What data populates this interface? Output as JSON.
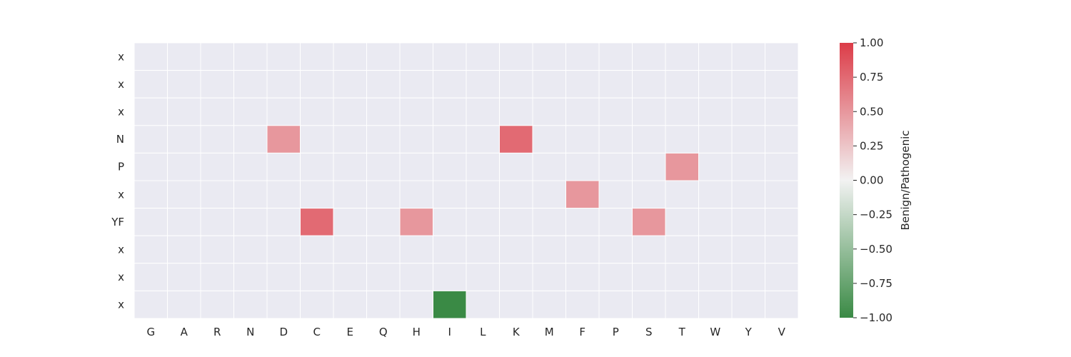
{
  "chart_data": {
    "type": "heatmap",
    "x_categories": [
      "G",
      "A",
      "R",
      "N",
      "D",
      "C",
      "E",
      "Q",
      "H",
      "I",
      "L",
      "K",
      "M",
      "F",
      "P",
      "S",
      "T",
      "W",
      "Y",
      "V"
    ],
    "y_categories": [
      "x",
      "x",
      "x",
      "N",
      "P",
      "x",
      "YF",
      "x",
      "x",
      "x"
    ],
    "cells": [
      {
        "row": 3,
        "col": 4,
        "value": 0.5
      },
      {
        "row": 3,
        "col": 11,
        "value": 0.75
      },
      {
        "row": 4,
        "col": 16,
        "value": 0.5
      },
      {
        "row": 5,
        "col": 13,
        "value": 0.5
      },
      {
        "row": 6,
        "col": 5,
        "value": 0.75
      },
      {
        "row": 6,
        "col": 8,
        "value": 0.5
      },
      {
        "row": 6,
        "col": 15,
        "value": 0.5
      },
      {
        "row": 9,
        "col": 9,
        "value": -1.0
      }
    ],
    "empty_cell_color": "#eaeaf2",
    "grid_color": "#ffffff",
    "colorbar": {
      "label": "Benign/Pathogenic",
      "range": [
        -1.0,
        1.0
      ],
      "ticks": [
        "1.00",
        "0.75",
        "0.50",
        "0.25",
        "0.00",
        "−0.25",
        "−0.50",
        "−0.75",
        "−1.00"
      ],
      "tick_values": [
        1.0,
        0.75,
        0.5,
        0.25,
        0.0,
        -0.25,
        -0.5,
        -0.75,
        -1.0
      ],
      "color_low": "#3a8a45",
      "color_mid": "#f2f2f2",
      "color_high": "#dc3c48"
    }
  }
}
